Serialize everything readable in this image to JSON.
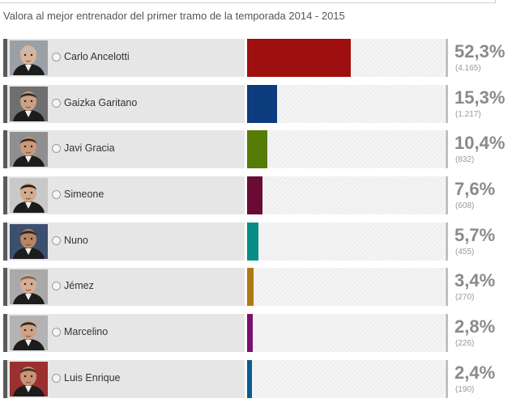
{
  "poll": {
    "title": "Valora al mejor entrenador del primer tramo de la temporada 2014 - 2015",
    "options": [
      {
        "name": "Carlo Ancelotti",
        "percent_label": "52,3%",
        "votes_label": "(4.165)",
        "percent": 52.3,
        "color": "#9e0f10",
        "avatar_icon": "coach-photo-icon"
      },
      {
        "name": "Gaizka Garitano",
        "percent_label": "15,3%",
        "votes_label": "(1.217)",
        "percent": 15.3,
        "color": "#0d3c7f",
        "avatar_icon": "coach-photo-icon"
      },
      {
        "name": "Javi Gracia",
        "percent_label": "10,4%",
        "votes_label": "(832)",
        "percent": 10.4,
        "color": "#547c06",
        "avatar_icon": "coach-photo-icon"
      },
      {
        "name": "Simeone",
        "percent_label": "7,6%",
        "votes_label": "(608)",
        "percent": 7.6,
        "color": "#6a0b36",
        "avatar_icon": "coach-photo-icon"
      },
      {
        "name": "Nuno",
        "percent_label": "5,7%",
        "votes_label": "(455)",
        "percent": 5.7,
        "color": "#0a8d87",
        "avatar_icon": "coach-photo-icon"
      },
      {
        "name": "Jémez",
        "percent_label": "3,4%",
        "votes_label": "(270)",
        "percent": 3.4,
        "color": "#b07a11",
        "avatar_icon": "coach-photo-icon"
      },
      {
        "name": "Marcelino",
        "percent_label": "2,8%",
        "votes_label": "(226)",
        "percent": 2.8,
        "color": "#7d0f6e",
        "avatar_icon": "coach-photo-icon"
      },
      {
        "name": "Luis Enrique",
        "percent_label": "2,4%",
        "votes_label": "(190)",
        "percent": 2.4,
        "color": "#0b5d91",
        "avatar_icon": "coach-photo-icon"
      }
    ]
  }
}
